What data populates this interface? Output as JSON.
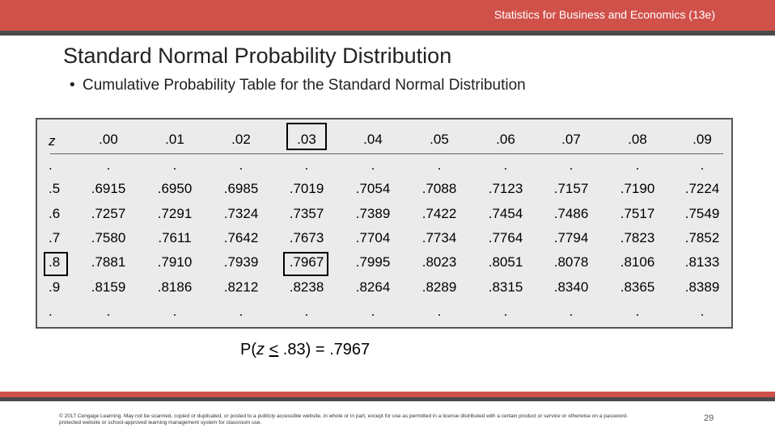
{
  "header": {
    "course_title": "Statistics for Business and Economics (13e)"
  },
  "slide": {
    "title": "Standard Normal Probability Distribution",
    "bullet": "Cumulative Probability Table for the Standard Normal Distribution",
    "probability_statement": {
      "prefix": "P(",
      "var": "z",
      "relation": "<",
      "rest": " .83) = .7967"
    }
  },
  "table": {
    "z_header": "z",
    "columns": [
      ".00",
      ".01",
      ".02",
      ".03",
      ".04",
      ".05",
      ".06",
      ".07",
      ".08",
      ".09"
    ],
    "rows": [
      {
        "z": ".",
        "values": [
          ".",
          ".",
          ".",
          ".",
          ".",
          ".",
          ".",
          ".",
          ".",
          "."
        ]
      },
      {
        "z": ".5",
        "values": [
          ".6915",
          ".6950",
          ".6985",
          ".7019",
          ".7054",
          ".7088",
          ".7123",
          ".7157",
          ".7190",
          ".7224"
        ]
      },
      {
        "z": ".6",
        "values": [
          ".7257",
          ".7291",
          ".7324",
          ".7357",
          ".7389",
          ".7422",
          ".7454",
          ".7486",
          ".7517",
          ".7549"
        ]
      },
      {
        "z": ".7",
        "values": [
          ".7580",
          ".7611",
          ".7642",
          ".7673",
          ".7704",
          ".7734",
          ".7764",
          ".7794",
          ".7823",
          ".7852"
        ]
      },
      {
        "z": ".8",
        "values": [
          ".7881",
          ".7910",
          ".7939",
          ".7967",
          ".7995",
          ".8023",
          ".8051",
          ".8078",
          ".8106",
          ".8133"
        ]
      },
      {
        "z": ".9",
        "values": [
          ".8159",
          ".8186",
          ".8212",
          ".8238",
          ".8264",
          ".8289",
          ".8315",
          ".8340",
          ".8365",
          ".8389"
        ]
      },
      {
        "z": ".",
        "values": [
          ".",
          ".",
          ".",
          ".",
          ".",
          ".",
          ".",
          ".",
          ".",
          "."
        ]
      }
    ],
    "highlight": {
      "row_z": ".8",
      "column": ".03",
      "value": ".7967"
    }
  },
  "footer": {
    "copyright": "© 2017 Cengage Learning. May not be scanned, copied or duplicated, or posted to a publicly accessible website, in whole or in part, except for use as permitted in a license distributed with a certain product or service or otherwise on a password-protected website or school-approved learning management system for classroom use.",
    "page_number": "29"
  },
  "colors": {
    "accent": "#d0514a",
    "dark_bar": "#4a4a4a",
    "table_bg": "#ebebeb"
  }
}
